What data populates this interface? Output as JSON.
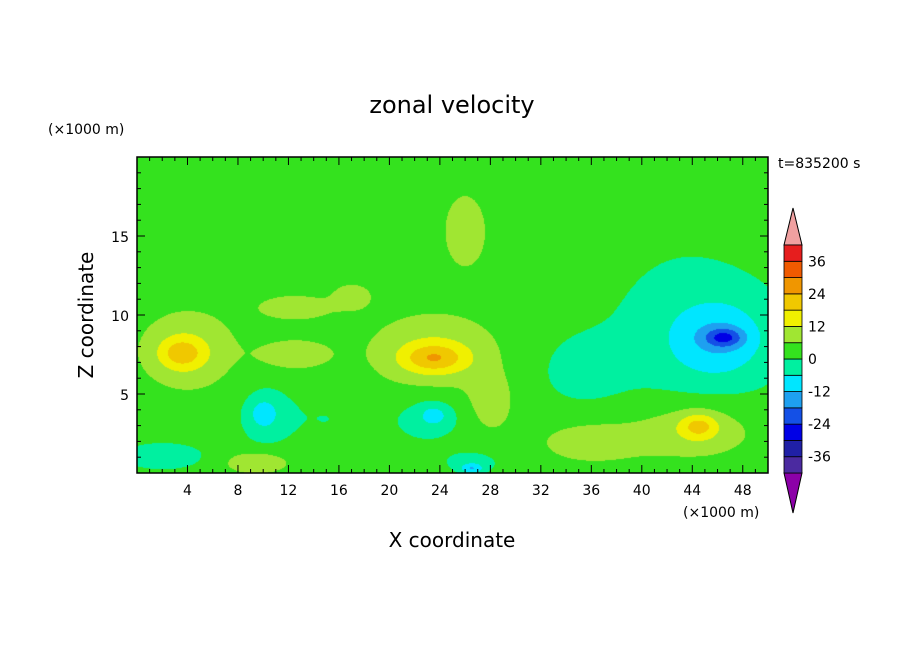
{
  "chart_data": {
    "type": "heatmap",
    "title": "zonal velocity",
    "xlabel": "X coordinate",
    "ylabel": "Z coordinate",
    "x_unit": "(×1000 m)",
    "y_unit": "(×1000 m)",
    "time_label": "t=835200 s",
    "xlim": [
      0,
      50
    ],
    "ylim": [
      0,
      20
    ],
    "x_ticks": [
      4,
      8,
      12,
      16,
      20,
      24,
      28,
      32,
      36,
      40,
      44,
      48
    ],
    "y_ticks": [
      5,
      10,
      15
    ],
    "colorbar": {
      "levels": [
        -42,
        -36,
        -30,
        -24,
        -18,
        -12,
        -6,
        0,
        6,
        12,
        18,
        24,
        30,
        36,
        42
      ],
      "colors": [
        "#8c00a8",
        "#4b2aa0",
        "#2020a6",
        "#0000e6",
        "#1450e6",
        "#1ea0f0",
        "#00e6ff",
        "#00f0a0",
        "#34e21e",
        "#a0e632",
        "#f0f000",
        "#f0c800",
        "#f09600",
        "#f05a00",
        "#e61e1e",
        "#f0a0a0"
      ],
      "tick_labels": [
        "36",
        "24",
        "12",
        "0",
        "-12",
        "-24",
        "-36"
      ],
      "tick_values": [
        36,
        24,
        12,
        0,
        -12,
        -24,
        -36
      ]
    },
    "background_value": 3,
    "features": [
      {
        "x": 37,
        "y": 18,
        "rx": 14,
        "ry": 4,
        "v": -2
      },
      {
        "x": 44,
        "y": 9,
        "rx": 8,
        "ry": 5.5,
        "v": -5
      },
      {
        "x": 46,
        "y": 8.5,
        "rx": 4,
        "ry": 2.5,
        "v": -11
      },
      {
        "x": 46.5,
        "y": 8.6,
        "rx": 1.5,
        "ry": 0.6,
        "v": -15
      },
      {
        "x": 4,
        "y": 7.8,
        "rx": 3.8,
        "ry": 2.5,
        "v": 8
      },
      {
        "x": 3.5,
        "y": 7.6,
        "rx": 1.8,
        "ry": 1.0,
        "v": 12
      },
      {
        "x": 23.5,
        "y": 7.6,
        "rx": 5,
        "ry": 2.4,
        "v": 9
      },
      {
        "x": 23.5,
        "y": 7.3,
        "rx": 2.5,
        "ry": 0.9,
        "v": 13
      },
      {
        "x": 26,
        "y": 15.5,
        "rx": 1.8,
        "ry": 2.5,
        "v": 8
      },
      {
        "x": 12.5,
        "y": 7.5,
        "rx": 3,
        "ry": 1.0,
        "v": 7
      },
      {
        "x": 12.5,
        "y": 10.5,
        "rx": 3,
        "ry": 0.8,
        "v": 7
      },
      {
        "x": 17,
        "y": 11.2,
        "rx": 1.5,
        "ry": 0.8,
        "v": 7
      },
      {
        "x": 10,
        "y": 3.6,
        "rx": 2.2,
        "ry": 2.2,
        "v": -5
      },
      {
        "x": 10,
        "y": 3.8,
        "rx": 1.1,
        "ry": 0.9,
        "v": -8
      },
      {
        "x": 23,
        "y": 3.5,
        "rx": 3.2,
        "ry": 1.8,
        "v": -5
      },
      {
        "x": 23.5,
        "y": 3.7,
        "rx": 1.2,
        "ry": 0.7,
        "v": -8
      },
      {
        "x": 28,
        "y": 4.5,
        "rx": 1.7,
        "ry": 1.8,
        "v": 7
      },
      {
        "x": 2,
        "y": 1.1,
        "rx": 3.5,
        "ry": 0.9,
        "v": -7
      },
      {
        "x": 9.5,
        "y": 0.7,
        "rx": 2.5,
        "ry": 0.7,
        "v": 9
      },
      {
        "x": 26.5,
        "y": 0.7,
        "rx": 2.2,
        "ry": 0.7,
        "v": -6
      },
      {
        "x": 26.5,
        "y": 0.3,
        "rx": 0.9,
        "ry": 0.3,
        "v": -11
      },
      {
        "x": 36,
        "y": 2.0,
        "rx": 4,
        "ry": 1.3,
        "v": 7
      },
      {
        "x": 44,
        "y": 2.7,
        "rx": 5,
        "ry": 1.8,
        "v": 8
      },
      {
        "x": 44.5,
        "y": 3.0,
        "rx": 1.5,
        "ry": 0.8,
        "v": 12
      },
      {
        "x": 35,
        "y": 6.5,
        "rx": 4,
        "ry": 2.5,
        "v": -4
      },
      {
        "x": 15,
        "y": 3.5,
        "rx": 4,
        "ry": 2.5,
        "v": -3
      },
      {
        "x": 5,
        "y": 17,
        "rx": 4,
        "ry": 1.5,
        "v": -2
      },
      {
        "x": 19,
        "y": 15.5,
        "rx": 3,
        "ry": 1.5,
        "v": -2
      }
    ]
  }
}
